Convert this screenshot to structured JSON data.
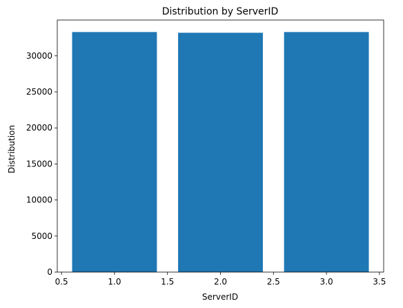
{
  "chart_data": {
    "type": "bar",
    "title": "Distribution by ServerID",
    "xlabel": "ServerID",
    "ylabel": "Distribution",
    "x": [
      1,
      2,
      3
    ],
    "values": [
      33300,
      33200,
      33300
    ],
    "bar_width": 0.8,
    "xlim": [
      0.46,
      3.54
    ],
    "ylim": [
      0,
      34965
    ],
    "xticks": [
      0.5,
      1.0,
      1.5,
      2.0,
      2.5,
      3.0,
      3.5
    ],
    "xtick_labels": [
      "0.5",
      "1.0",
      "1.5",
      "2.0",
      "2.5",
      "3.0",
      "3.5"
    ],
    "yticks": [
      0,
      5000,
      10000,
      15000,
      20000,
      25000,
      30000
    ],
    "ytick_labels": [
      "0",
      "5000",
      "10000",
      "15000",
      "20000",
      "25000",
      "30000"
    ],
    "bar_color": "#1f77b4",
    "grid": false,
    "legend": false
  }
}
